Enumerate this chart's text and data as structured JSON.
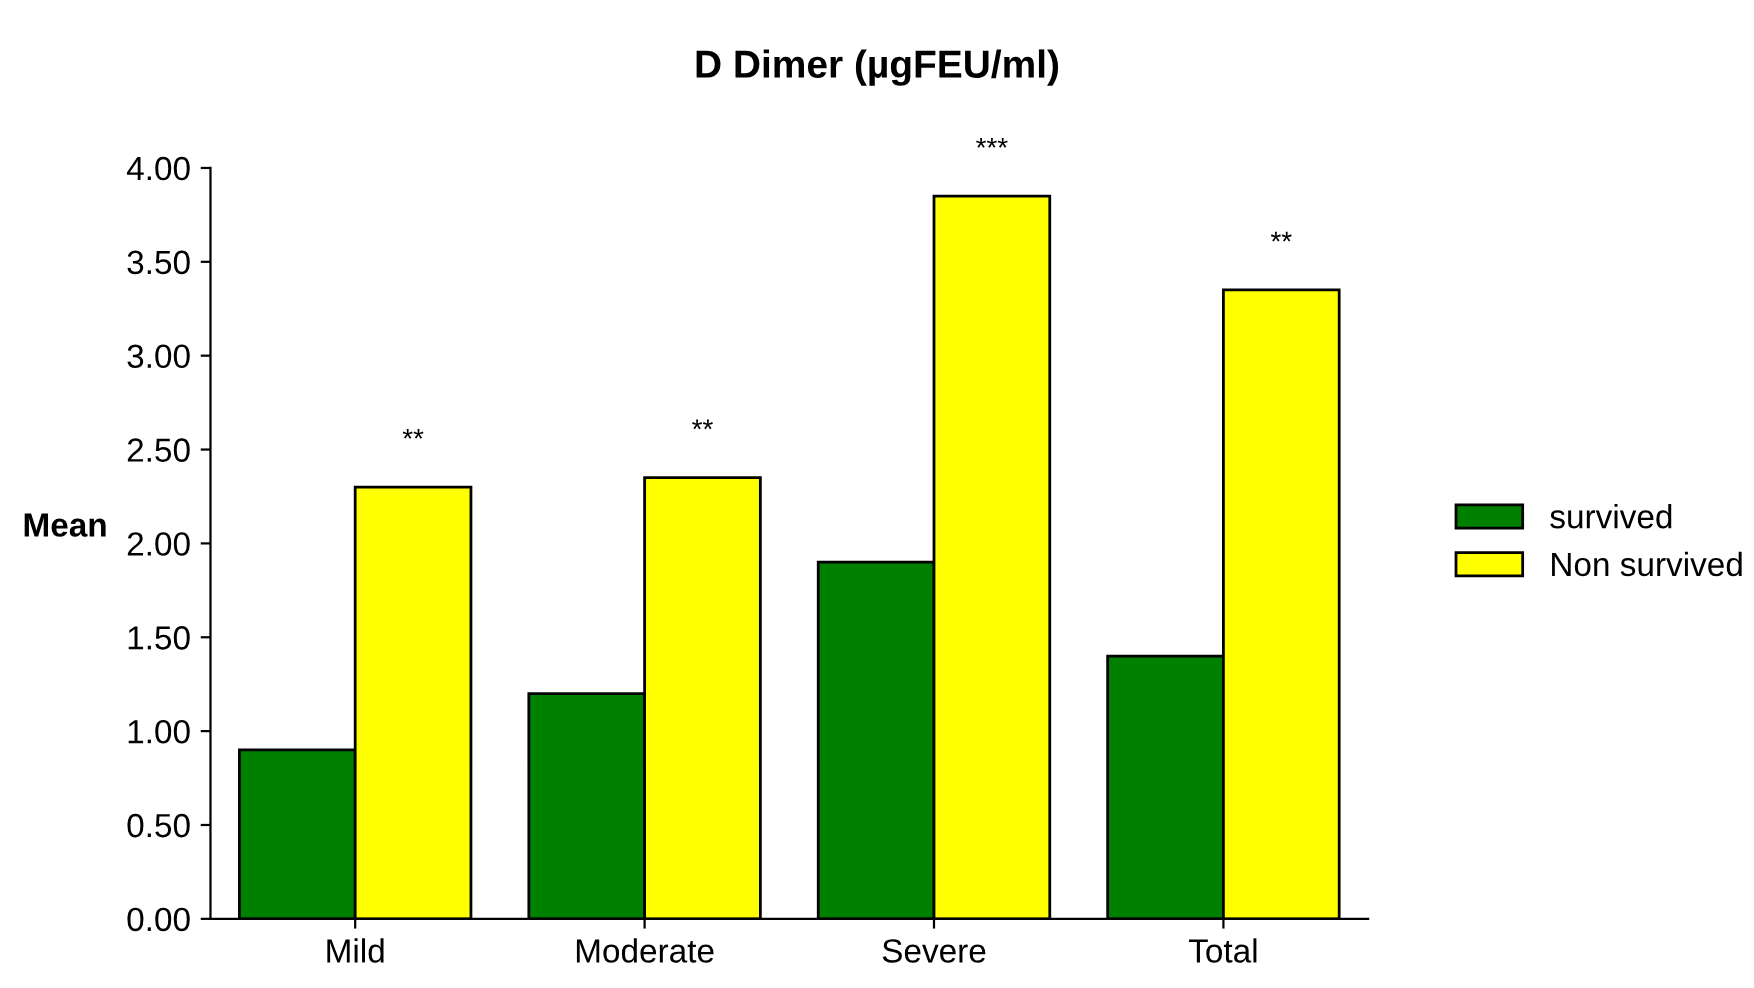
{
  "chart_data": {
    "type": "bar",
    "title": "D Dimer (µgFEU/ml)",
    "ylabel": "Mean",
    "categories": [
      "Mild",
      "Moderate",
      "Severe",
      "Total"
    ],
    "series": [
      {
        "name": "survived",
        "color": "#008000",
        "values": [
          0.9,
          1.2,
          1.9,
          1.4
        ]
      },
      {
        "name": "Non survived",
        "color": "#ffff00",
        "values": [
          2.3,
          2.35,
          3.85,
          3.35
        ]
      }
    ],
    "annotations": [
      "**",
      "**",
      "***",
      "**"
    ],
    "ylim": [
      0,
      4
    ],
    "yticks": [
      {
        "value": 0,
        "label": "0.00"
      },
      {
        "value": 0.5,
        "label": "0.50"
      },
      {
        "value": 1,
        "label": "1.00"
      },
      {
        "value": 1.5,
        "label": "1.50"
      },
      {
        "value": 2,
        "label": "2.00"
      },
      {
        "value": 2.5,
        "label": "2.50"
      },
      {
        "value": 3,
        "label": "3.00"
      },
      {
        "value": 3.5,
        "label": "3.50"
      },
      {
        "value": 4,
        "label": "4.00"
      }
    ],
    "legend": "right",
    "grid": false
  }
}
